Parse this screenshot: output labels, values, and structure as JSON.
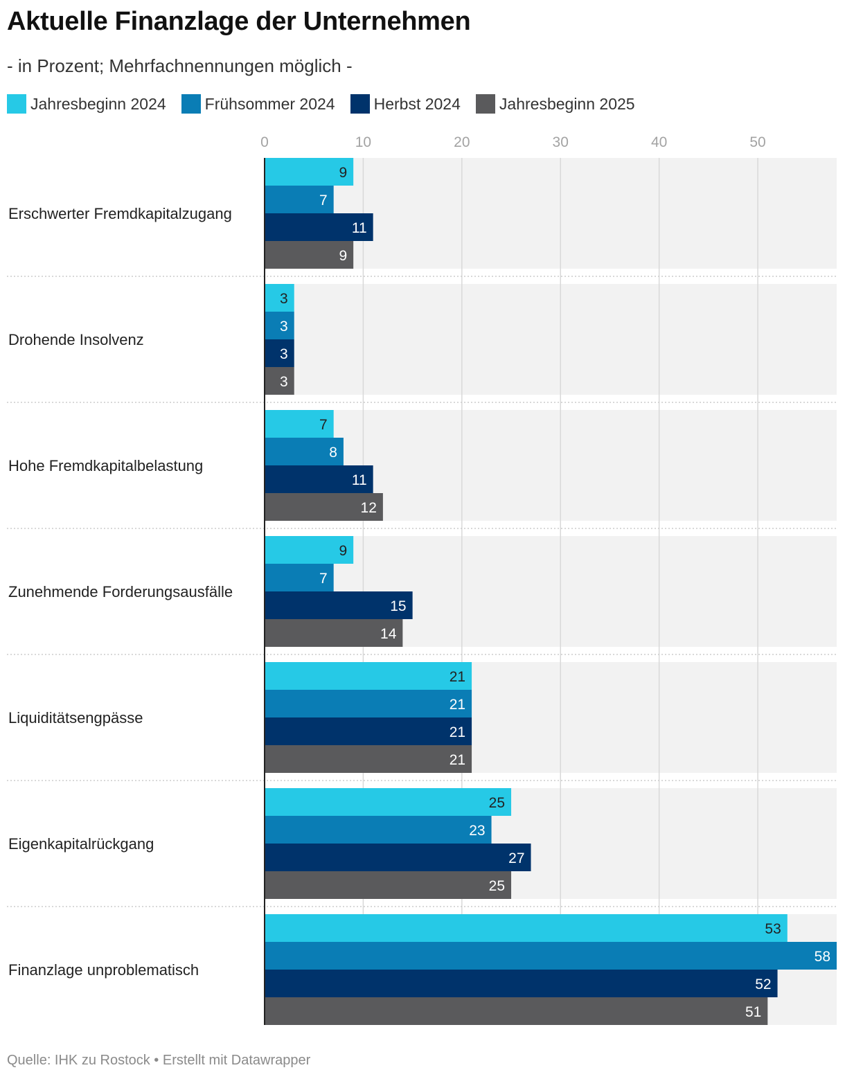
{
  "header": {
    "title": "Aktuelle Finanzlage der Unternehmen",
    "subtitle": "- in Prozent; Mehrfachnennungen möglich -"
  },
  "footer": {
    "source": "Quelle: IHK zu Rostock • Erstellt mit Datawrapper"
  },
  "colors": {
    "background_band": "#f2f2f2",
    "gridline": "#d9d9d9",
    "axis": "#222222",
    "separator": "#cccccc"
  },
  "chart_data": {
    "type": "bar",
    "orientation": "horizontal",
    "title": "Aktuelle Finanzlage der Unternehmen",
    "subtitle": "- in Prozent; Mehrfachnennungen möglich -",
    "xlim": [
      0,
      58
    ],
    "xticks": [
      0,
      10,
      20,
      30,
      40,
      50
    ],
    "grid": true,
    "legend_position": "top-left",
    "categories": [
      "Erschwerter Fremdkapitalzugang",
      "Drohende Insolvenz",
      "Hohe Fremdkapitalbelastung",
      "Zunehmende Forderungsausfälle",
      "Liquiditätsengpässe",
      "Eigenkapitalrückgang",
      "Finanzlage unproblematisch"
    ],
    "series": [
      {
        "name": "Jahresbeginn 2024",
        "color": "#26c9e6",
        "label_color": "#222222",
        "values": [
          9,
          3,
          7,
          9,
          21,
          25,
          53
        ]
      },
      {
        "name": "Frühsommer 2024",
        "color": "#0a7db5",
        "label_color": "#ffffff",
        "values": [
          7,
          3,
          8,
          7,
          21,
          23,
          58
        ]
      },
      {
        "name": "Herbst 2024",
        "color": "#00336b",
        "label_color": "#ffffff",
        "values": [
          11,
          3,
          11,
          15,
          21,
          27,
          52
        ]
      },
      {
        "name": "Jahresbeginn 2025",
        "color": "#5a5a5c",
        "label_color": "#ffffff",
        "values": [
          9,
          3,
          12,
          14,
          21,
          25,
          51
        ]
      }
    ]
  }
}
